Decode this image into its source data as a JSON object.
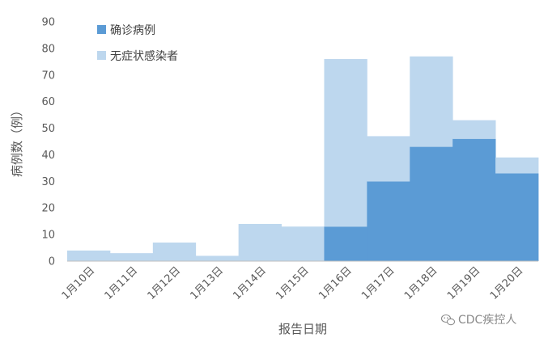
{
  "chart_data": {
    "type": "bar",
    "stacked": true,
    "categories": [
      "1月10日",
      "1月11日",
      "1月12日",
      "1月13日",
      "1月14日",
      "1月15日",
      "1月16日",
      "1月17日",
      "1月18日",
      "1月19日",
      "1月20日"
    ],
    "series": [
      {
        "name": "确诊病例",
        "color": "#5b9bd5",
        "values": [
          0,
          0,
          0,
          0,
          0,
          0,
          13,
          30,
          43,
          46,
          33
        ]
      },
      {
        "name": "无症状感染者",
        "color": "#bdd7ee",
        "values": [
          4,
          3,
          7,
          2,
          14,
          13,
          63,
          17,
          34,
          7,
          6
        ]
      }
    ],
    "xlabel": "报告日期",
    "ylabel": "病例数（例）",
    "ylim": [
      0,
      90
    ],
    "yticks": [
      0,
      10,
      20,
      30,
      40,
      50,
      60,
      70,
      80,
      90
    ],
    "grid": false,
    "legend_position": "top-left"
  },
  "watermark": {
    "text": "CDC疾控人",
    "icon": "wechat-icon"
  }
}
